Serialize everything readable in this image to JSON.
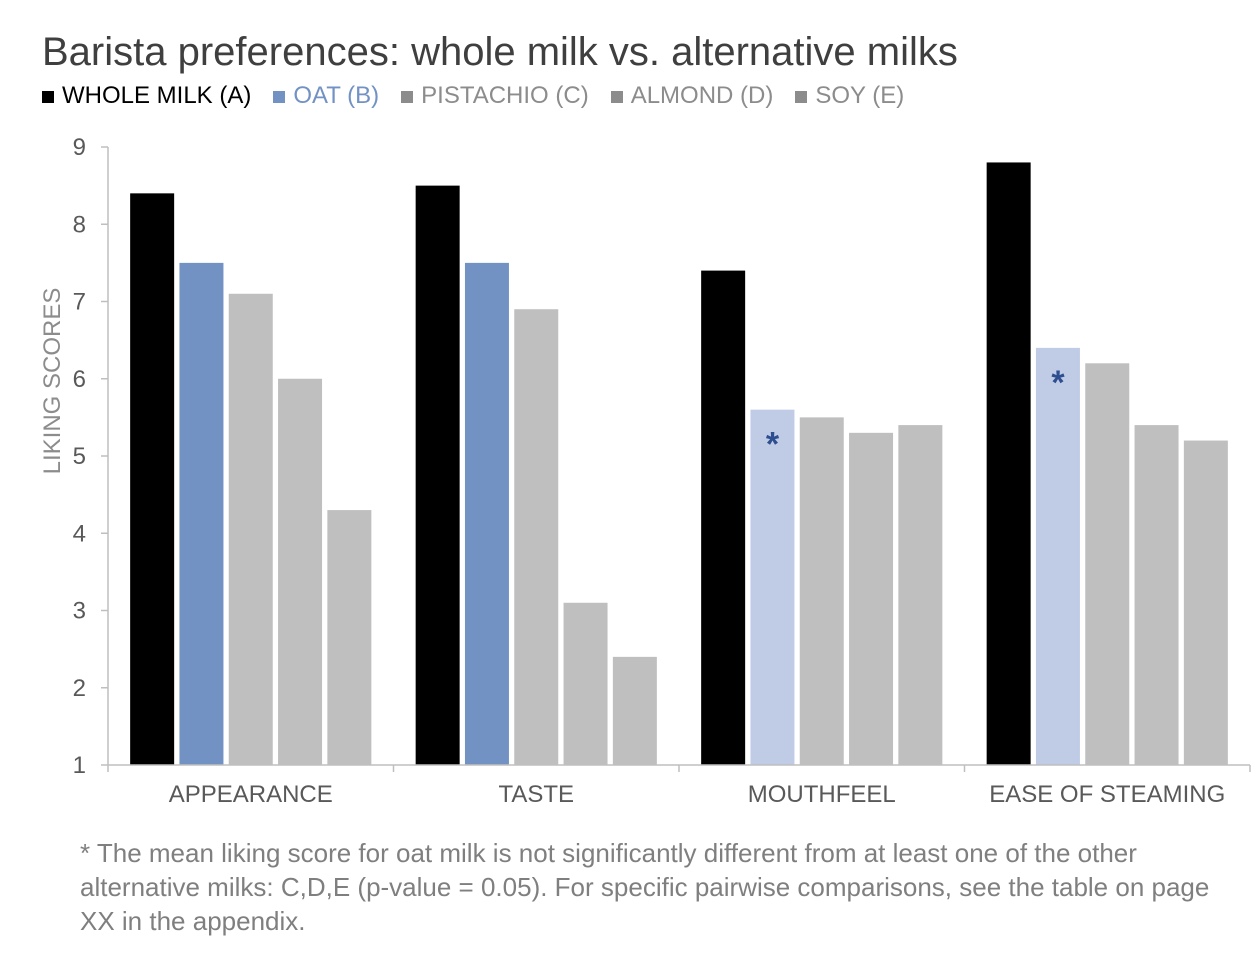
{
  "chart_data": {
    "type": "bar",
    "title": "Barista preferences: whole milk vs. alternative milks",
    "ylabel": "LIKING SCORES",
    "xlabel": "",
    "ylim": [
      1,
      9
    ],
    "yticks": [
      "1",
      "2",
      "3",
      "4",
      "5",
      "6",
      "7",
      "8",
      "9"
    ],
    "legend_position": "top-left",
    "grid": false,
    "categories": [
      "APPEARANCE",
      "TASTE",
      "MOUTHFEEL",
      "EASE OF STEAMING"
    ],
    "series": [
      {
        "name": "WHOLE MILK (A)",
        "color": "#000000",
        "label_color": "#000000",
        "values": [
          8.4,
          8.5,
          7.4,
          8.8
        ]
      },
      {
        "name": "OAT (B)",
        "color": "#7292c4",
        "label_color": "#7292c4",
        "values": [
          7.5,
          7.5,
          5.6,
          6.4
        ],
        "bar_colors": [
          "#7292c4",
          "#7292c4",
          "#c0cce6",
          "#c0cce6"
        ],
        "markers": [
          "",
          "",
          "*",
          "*"
        ],
        "marker_color": "#2e4f8f"
      },
      {
        "name": "PISTACHIO (C)",
        "color": "#bfbfbf",
        "label_color": "#8c8c8c",
        "legend_swatch": "#8c8c8c",
        "values": [
          7.1,
          6.9,
          5.5,
          6.2
        ]
      },
      {
        "name": "ALMOND (D)",
        "color": "#bfbfbf",
        "label_color": "#8c8c8c",
        "legend_swatch": "#8c8c8c",
        "values": [
          6.0,
          3.1,
          5.3,
          5.4
        ]
      },
      {
        "name": "SOY (E)",
        "color": "#bfbfbf",
        "label_color": "#8c8c8c",
        "legend_swatch": "#8c8c8c",
        "values": [
          4.3,
          2.4,
          5.4,
          5.2
        ]
      }
    ],
    "annotations": [
      "*"
    ],
    "footnote": "* The mean liking score for oat milk is not significantly different from at least one of the other alternative milks: C,D,E (p-value = 0.05). For specific pairwise comparisons, see the table on page XX in the appendix."
  }
}
